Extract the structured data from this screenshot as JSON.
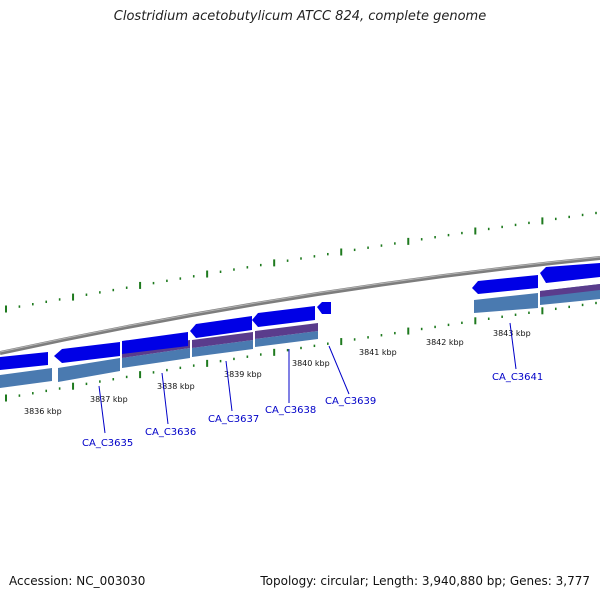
{
  "title": "Clostridium acetobutylicum ATCC 824, complete genome",
  "footer": {
    "accession": "Accession: NC_003030",
    "summary": "Topology: circular; Length: 3,940,880 bp; Genes: 3,777"
  },
  "colors": {
    "gene_fill": "#0000e6",
    "backbone": "#8c8c8c",
    "tick": "#1e7a1e",
    "label": "#0000c8",
    "cds_purple": "#5a3c8c",
    "cds_steel": "#4a7ab0"
  },
  "kbp_labels": [
    "3836 kbp",
    "3837 kbp",
    "3838 kbp",
    "3839 kbp",
    "3840 kbp",
    "3841 kbp",
    "3842 kbp",
    "3843 kbp"
  ],
  "genes": [
    "CA_C3635",
    "CA_C3636",
    "CA_C3637",
    "CA_C3638",
    "CA_C3639",
    "CA_C3641"
  ]
}
